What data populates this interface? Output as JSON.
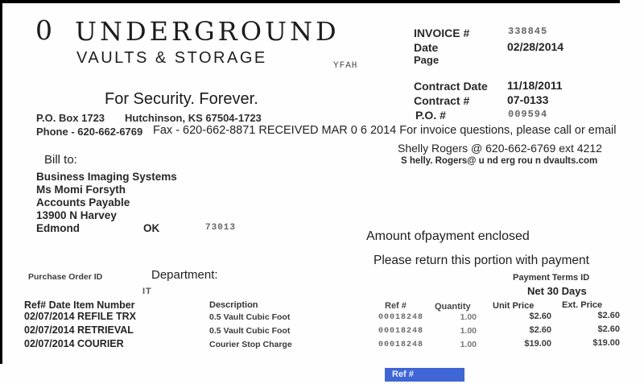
{
  "logo": {
    "zero": "0",
    "name": "UNDERGROUND",
    "subtitle": "VAULTS & STORAGE",
    "tagline": "For Security. Forever.",
    "scan_artifact": "YFAH"
  },
  "company": {
    "po_box": "P.O. Box 1723",
    "city_line": "Hutchinson, KS 67504-1723",
    "phone_line": "Phone - 620-662-6769",
    "fax_stamp_line": "Fax - 620-662-8871 RECEIVED MAR 0 6 2014 For invoice questions, please call or email"
  },
  "invoice_meta": {
    "invoice_label": "INVOICE #",
    "invoice_number": "338845",
    "date_label": "Date",
    "date_value": "02/28/2014",
    "page_label": "Page",
    "contract_date_label": "Contract Date",
    "contract_date_value": "11/18/2011",
    "contract_number_label": "Contract #",
    "contract_number_value": "07-0133",
    "po_label": "P.O. #",
    "po_value": "009594"
  },
  "contact": {
    "name_phone": "Shelly Rogers @ 620-662-6769 ext 4212",
    "email": "S helly. Rogers@ u nd erg rou n dvaults.com"
  },
  "bill_to": {
    "label": "Bill to:",
    "company": "Business Imaging Systems",
    "attention": "Ms Momi Forsyth",
    "department": "Accounts Payable",
    "street": "13900 N Harvey",
    "city": "Edmond",
    "state": "OK",
    "zip": "73013"
  },
  "remittance": {
    "amount_line": "Amount ofpayment enclosed",
    "return_line": "Please return this portion with payment"
  },
  "order_meta": {
    "purchase_order_label": "Purchase Order ID",
    "department_label": "Department:",
    "department_value": "IT",
    "payment_terms_label": "Payment Terms ID",
    "payment_terms_value": "Net 30 Days"
  },
  "line_items": {
    "headers": {
      "item": "Ref# Date Item Number",
      "description": "Description",
      "ref": "Ref #",
      "quantity": "Quantity",
      "unit_price": "Unit Price",
      "ext_price": "Ext. Price"
    },
    "rows": [
      {
        "item": "02/07/2014 REFILE TRX",
        "description": "0.5 Vault Cubic Foot",
        "ref": "00018248",
        "quantity": "1.00",
        "unit_price": "$2.60",
        "ext_price": "$2.60"
      },
      {
        "item": "02/07/2014 RETRIEVAL",
        "description": "0.5 Vault Cubic Foot",
        "ref": "00018248",
        "quantity": "1.00",
        "unit_price": "$2.60",
        "ext_price": "$2.60"
      },
      {
        "item": "02/07/2014 COURIER",
        "description": "Courier Stop Charge",
        "ref": "00018248",
        "quantity": "1.00",
        "unit_price": "$19.00",
        "ext_price": "$19.00"
      }
    ]
  },
  "footer": {
    "ref_field_tag": "Ref #",
    "tag_color": "#3f66d4"
  }
}
